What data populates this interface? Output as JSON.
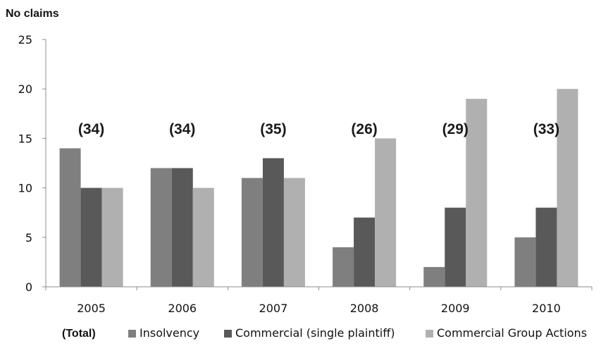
{
  "chart_data": {
    "type": "bar",
    "ylabel": "No claims",
    "ylim": [
      0,
      25
    ],
    "yticks": [
      0,
      5,
      10,
      15,
      20,
      25
    ],
    "categories": [
      "2005",
      "2006",
      "2007",
      "2008",
      "2009",
      "2010"
    ],
    "totals": [
      "(34)",
      "(34)",
      "(35)",
      "(26)",
      "(29)",
      "(33)"
    ],
    "legend_title": "(Total)",
    "legend_position": "bottom",
    "grid": false,
    "series": [
      {
        "name": "Insolvency",
        "color": "#7f7f7f",
        "values": [
          14,
          12,
          11,
          4,
          2,
          5
        ]
      },
      {
        "name": "Commercial (single plaintiff)",
        "color": "#595959",
        "values": [
          10,
          12,
          13,
          7,
          8,
          8
        ]
      },
      {
        "name": "Commercial Group Actions",
        "color": "#b0b0b0",
        "values": [
          10,
          10,
          11,
          15,
          19,
          20
        ]
      }
    ]
  }
}
